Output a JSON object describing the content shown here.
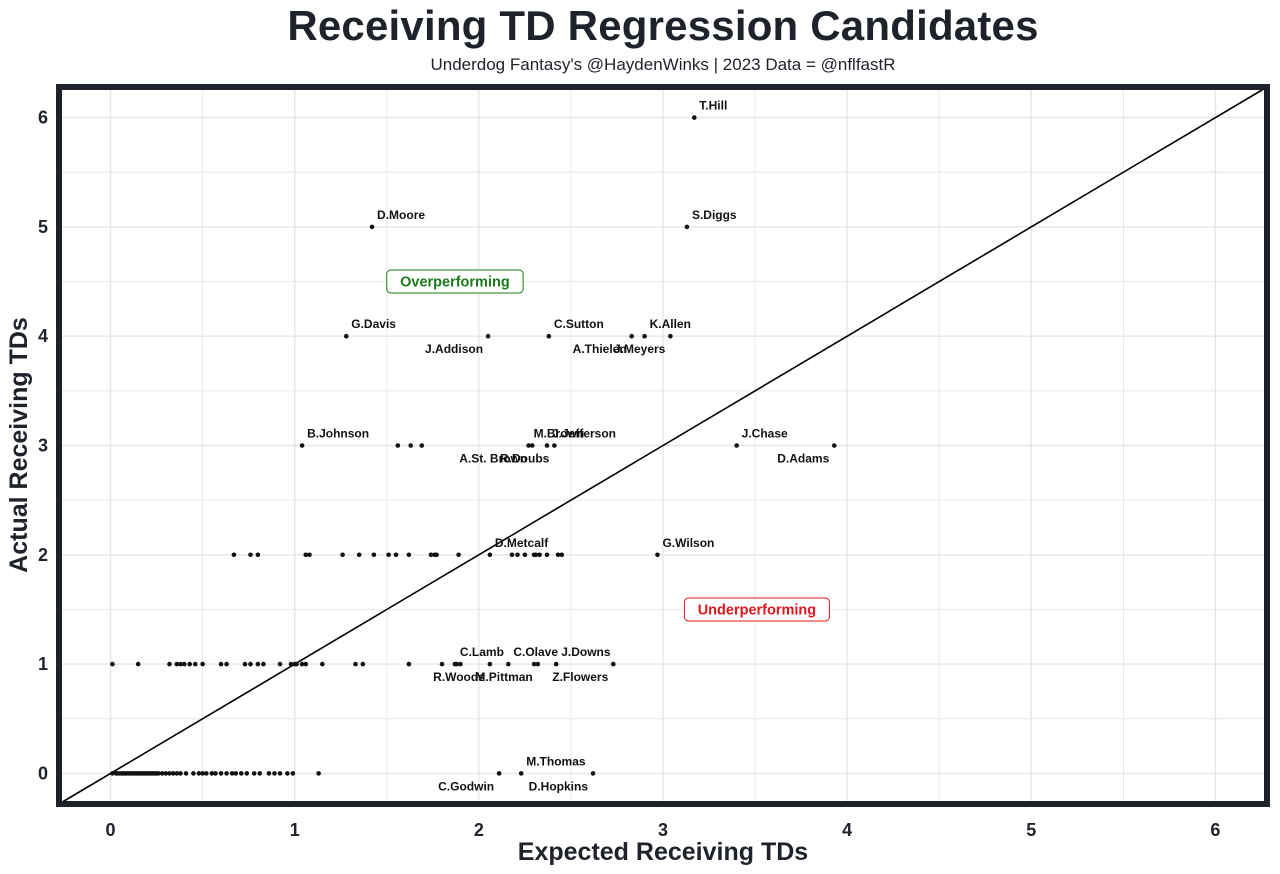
{
  "header": {
    "title": "Receiving TD Regression Candidates",
    "subtitle": "Underdog Fantasy's @HaydenWinks | 2023 Data = @nflfastR"
  },
  "colors": {
    "panel_border": "#1e222b",
    "grid": "#e6e6e6",
    "point": "#111111",
    "over": "#1a7a1a",
    "under": "#e0151b"
  },
  "chart_data": {
    "type": "scatter",
    "title": "Receiving TD Regression Candidates",
    "subtitle": "Underdog Fantasy's @HaydenWinks | 2023 Data = @nflfastR",
    "xlabel": "Expected Receiving TDs",
    "ylabel": "Actual Receiving TDs",
    "xlim": [
      -0.28,
      6.28
    ],
    "ylim": [
      -0.28,
      6.28
    ],
    "xticks": [
      0,
      1,
      2,
      3,
      4,
      5,
      6
    ],
    "yticks": [
      0,
      1,
      2,
      3,
      4,
      5,
      6
    ],
    "reference_line": "y = x",
    "annotations": [
      {
        "text": "Overperforming",
        "x": 1.87,
        "y": 4.5,
        "color": "over"
      },
      {
        "text": "Underperforming",
        "x": 3.51,
        "y": 1.5,
        "color": "under"
      }
    ],
    "labeled_points": [
      {
        "name": "T.Hill",
        "x": 3.17,
        "y": 6,
        "pos": "above"
      },
      {
        "name": "S.Diggs",
        "x": 3.13,
        "y": 5,
        "pos": "above"
      },
      {
        "name": "D.Moore",
        "x": 1.42,
        "y": 5,
        "pos": "above"
      },
      {
        "name": "G.Davis",
        "x": 1.28,
        "y": 4,
        "pos": "above"
      },
      {
        "name": "J.Addison",
        "x": 2.05,
        "y": 4,
        "pos": "below"
      },
      {
        "name": "C.Sutton",
        "x": 2.38,
        "y": 4,
        "pos": "above"
      },
      {
        "name": "A.Thielen",
        "x": 2.83,
        "y": 4,
        "pos": "below"
      },
      {
        "name": "K.Allen",
        "x": 2.9,
        "y": 4,
        "pos": "above"
      },
      {
        "name": "J.Meyers",
        "x": 3.04,
        "y": 4,
        "pos": "below"
      },
      {
        "name": "B.Johnson",
        "x": 1.04,
        "y": 3,
        "pos": "above"
      },
      {
        "name": "M.Brown",
        "x": 2.27,
        "y": 3,
        "pos": "above"
      },
      {
        "name": "A.St. Brown",
        "x": 2.29,
        "y": 3,
        "pos": "below"
      },
      {
        "name": "J.Jefferson",
        "x": 2.37,
        "y": 3,
        "pos": "above"
      },
      {
        "name": "R.Doubs",
        "x": 2.41,
        "y": 3,
        "pos": "below"
      },
      {
        "name": "J.Chase",
        "x": 3.4,
        "y": 3,
        "pos": "above"
      },
      {
        "name": "D.Adams",
        "x": 3.93,
        "y": 3,
        "pos": "below"
      },
      {
        "name": "D.Metcalf",
        "x": 2.06,
        "y": 2,
        "pos": "above"
      },
      {
        "name": "G.Wilson",
        "x": 2.97,
        "y": 2,
        "pos": "above"
      },
      {
        "name": "C.Lamb",
        "x": 1.87,
        "y": 1,
        "pos": "above"
      },
      {
        "name": "R.Woods",
        "x": 2.06,
        "y": 1,
        "pos": "below"
      },
      {
        "name": "C.Olave",
        "x": 2.16,
        "y": 1,
        "pos": "above"
      },
      {
        "name": "M.Pittman",
        "x": 2.32,
        "y": 1,
        "pos": "below"
      },
      {
        "name": "J.Downs",
        "x": 2.42,
        "y": 1,
        "pos": "above"
      },
      {
        "name": "Z.Flowers",
        "x": 2.73,
        "y": 1,
        "pos": "below"
      },
      {
        "name": "C.Godwin",
        "x": 2.11,
        "y": 0,
        "pos": "below"
      },
      {
        "name": "M.Thomas",
        "x": 2.23,
        "y": 0,
        "pos": "above"
      },
      {
        "name": "D.Hopkins",
        "x": 2.62,
        "y": 0,
        "pos": "below"
      }
    ],
    "other_points": [
      {
        "y": 6,
        "x": []
      },
      {
        "y": 5,
        "x": []
      },
      {
        "y": 4,
        "x": []
      },
      {
        "y": 3,
        "x": [
          1.56,
          1.63,
          1.69
        ]
      },
      {
        "y": 2,
        "x": [
          0.67,
          0.76,
          0.8,
          1.06,
          1.08,
          1.26,
          1.35,
          1.43,
          1.51,
          1.55,
          1.62,
          1.74,
          1.76,
          1.77,
          1.89,
          2.18,
          2.21,
          2.25,
          2.3,
          2.31,
          2.33,
          2.37,
          2.43,
          2.45
        ]
      },
      {
        "y": 1,
        "x": [
          0.01,
          0.15,
          0.32,
          0.36,
          0.38,
          0.4,
          0.43,
          0.46,
          0.5,
          0.6,
          0.63,
          0.73,
          0.76,
          0.8,
          0.83,
          0.92,
          0.98,
          1.0,
          1.01,
          1.04,
          1.06,
          1.15,
          1.33,
          1.37,
          1.62,
          1.8,
          1.88,
          1.9,
          2.3
        ]
      },
      {
        "y": 0,
        "x": [
          0.01,
          0.03,
          0.04,
          0.05,
          0.06,
          0.07,
          0.08,
          0.09,
          0.1,
          0.11,
          0.12,
          0.13,
          0.14,
          0.15,
          0.16,
          0.17,
          0.18,
          0.19,
          0.2,
          0.21,
          0.22,
          0.23,
          0.24,
          0.25,
          0.26,
          0.28,
          0.3,
          0.32,
          0.34,
          0.36,
          0.38,
          0.41,
          0.45,
          0.48,
          0.5,
          0.52,
          0.55,
          0.57,
          0.6,
          0.63,
          0.66,
          0.68,
          0.71,
          0.74,
          0.78,
          0.81,
          0.86,
          0.89,
          0.92,
          0.96,
          0.99,
          1.13
        ]
      }
    ]
  }
}
